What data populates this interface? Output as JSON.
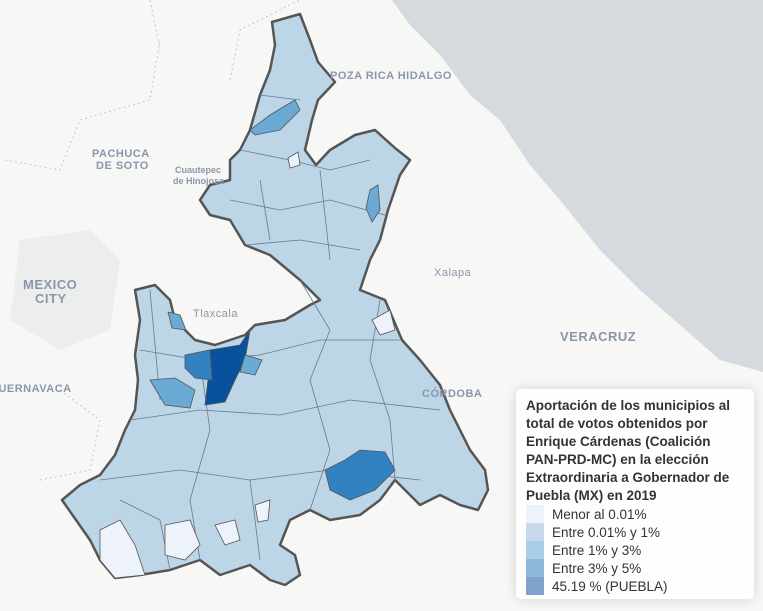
{
  "map": {
    "cities": [
      {
        "name": "POZA RICA\nDE HIDALGO",
        "label": "POZA RICA HIDALGO"
      },
      {
        "label": "PACHUCA"
      },
      {
        "label": "DE SOTO"
      },
      {
        "label": "Cuautepec"
      },
      {
        "label": "de Hinojosa"
      },
      {
        "label": "MEXICO"
      },
      {
        "label": "CITY"
      },
      {
        "label": "Tlaxcala"
      },
      {
        "label": "Xalapa"
      },
      {
        "label": "VERACRUZ"
      },
      {
        "label": "CÓRDOBA"
      },
      {
        "label": "CUERNAVACA"
      }
    ]
  },
  "legend": {
    "title": "Aportación de los municipios al total de votos obtenidos por Enrique Cárdenas (Coalición PAN-PRD-MC) en la elección Extraordinaria a Gobernador de Puebla (MX) en 2019",
    "items": [
      {
        "label": "Menor al 0.01%",
        "color": "#eef3fb"
      },
      {
        "label": "Entre 0.01% y 1%",
        "color": "#c5d9ea"
      },
      {
        "label": "Entre 1% y 3%",
        "color": "#a9cfe6"
      },
      {
        "label": "Entre 3% y 5%",
        "color": "#8fb8da"
      },
      {
        "label": "45.19 % (PUEBLA)",
        "color": "#7fa3cc"
      }
    ]
  },
  "colors": {
    "base": "#bcd5e7",
    "low": "#eef2fb",
    "mid": "#6aaad4",
    "high": "#3282c2",
    "top": "#08519c",
    "sea": "#d4dadd"
  }
}
